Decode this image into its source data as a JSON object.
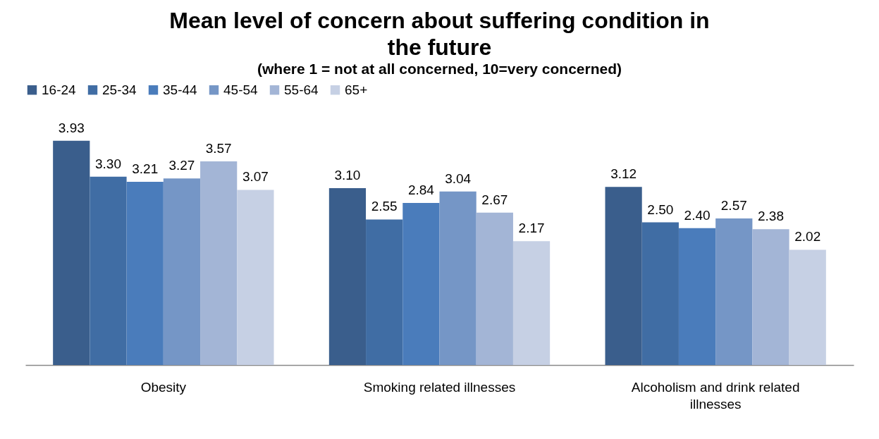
{
  "chart_data": {
    "type": "bar",
    "title": "Mean level of concern about suffering condition in the future",
    "subtitle": "(where 1 = not at all concerned, 10=very concerned)",
    "categories": [
      "Obesity",
      "Smoking related illnesses",
      "Alcoholism and drink related illnesses"
    ],
    "series": [
      {
        "name": "16-24",
        "color": "#3a5e8c",
        "values": [
          3.93,
          3.1,
          3.12
        ],
        "value_labels": [
          "3.93",
          "3.10",
          "3.12"
        ]
      },
      {
        "name": "25-34",
        "color": "#406da4",
        "values": [
          3.3,
          2.55,
          2.5
        ],
        "value_labels": [
          "3.30",
          "2.55",
          "2.50"
        ]
      },
      {
        "name": "35-44",
        "color": "#4a7cbb",
        "values": [
          3.21,
          2.84,
          2.4
        ],
        "value_labels": [
          "3.21",
          "2.84",
          "2.40"
        ]
      },
      {
        "name": "45-54",
        "color": "#7596c6",
        "values": [
          3.27,
          3.04,
          2.57
        ],
        "value_labels": [
          "3.27",
          "3.04",
          "2.57"
        ]
      },
      {
        "name": "55-64",
        "color": "#a3b5d6",
        "values": [
          3.57,
          2.67,
          2.38
        ],
        "value_labels": [
          "3.57",
          "2.67",
          "2.38"
        ]
      },
      {
        "name": "65+",
        "color": "#c6d0e4",
        "values": [
          3.07,
          2.17,
          2.02
        ],
        "value_labels": [
          "3.07",
          "2.17",
          "2.02"
        ]
      }
    ],
    "legend": "top",
    "grid": false
  }
}
